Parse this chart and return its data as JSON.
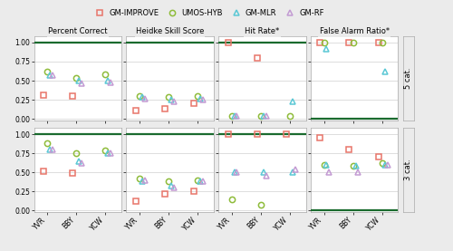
{
  "legend": {
    "labels": [
      "GM-IMPROVE",
      "UMOS-HYB",
      "GM-MLR",
      "GM-RF"
    ],
    "colors": [
      "#e8756a",
      "#8fbc3b",
      "#5bc8d5",
      "#c39bd3"
    ],
    "markers": [
      "s",
      "o",
      "^",
      "^"
    ]
  },
  "col_titles": [
    "Percent Correct",
    "Heidke Skill Score",
    "Hit Rate*",
    "False Alarm Ratio*"
  ],
  "row_labels": [
    "5 cat.",
    "3 cat."
  ],
  "x_labels": [
    "YVR",
    "BBY",
    "YCW"
  ],
  "perfect_score": {
    "Percent Correct": 1.0,
    "Heidke Skill Score": 1.0,
    "Hit Rate*": 1.0,
    "False Alarm Ratio*": 0.0
  },
  "data": {
    "5cat": {
      "Percent Correct": {
        "GM-IMPROVE": [
          0.31,
          0.3,
          null
        ],
        "UMOS-HYB": [
          0.62,
          0.54,
          0.58
        ],
        "GM-MLR": [
          0.57,
          0.5,
          0.5
        ],
        "GM-RF": [
          0.57,
          0.46,
          0.48
        ]
      },
      "Heidke Skill Score": {
        "GM-IMPROVE": [
          0.11,
          0.13,
          0.2
        ],
        "UMOS-HYB": [
          0.3,
          0.29,
          0.3
        ],
        "GM-MLR": [
          0.29,
          0.25,
          0.26
        ],
        "GM-RF": [
          0.26,
          0.23,
          0.25
        ]
      },
      "Hit Rate*": {
        "GM-IMPROVE": [
          1.0,
          0.8,
          null
        ],
        "UMOS-HYB": [
          0.04,
          0.04,
          0.04
        ],
        "GM-MLR": [
          0.04,
          0.04,
          0.23
        ],
        "GM-RF": [
          0.04,
          0.04,
          null
        ]
      },
      "False Alarm Ratio*": {
        "GM-IMPROVE": [
          1.0,
          1.0,
          1.0
        ],
        "UMOS-HYB": [
          1.0,
          1.0,
          1.0
        ],
        "GM-MLR": [
          0.92,
          null,
          0.62
        ],
        "GM-RF": [
          null,
          null,
          null
        ]
      }
    },
    "3cat": {
      "Percent Correct": {
        "GM-IMPROVE": [
          0.52,
          0.49,
          null
        ],
        "UMOS-HYB": [
          0.88,
          0.75,
          0.79
        ],
        "GM-MLR": [
          0.8,
          0.64,
          0.75
        ],
        "GM-RF": [
          0.8,
          0.62,
          0.75
        ]
      },
      "Heidke Skill Score": {
        "GM-IMPROVE": [
          0.12,
          0.22,
          0.25
        ],
        "UMOS-HYB": [
          0.42,
          0.38,
          0.4
        ],
        "GM-MLR": [
          0.38,
          0.32,
          0.38
        ],
        "GM-RF": [
          0.4,
          0.3,
          0.38
        ]
      },
      "Hit Rate*": {
        "GM-IMPROVE": [
          1.0,
          1.0,
          1.0
        ],
        "UMOS-HYB": [
          0.15,
          0.08,
          null
        ],
        "GM-MLR": [
          0.5,
          0.5,
          0.5
        ],
        "GM-RF": [
          0.5,
          0.45,
          0.54
        ]
      },
      "False Alarm Ratio*": {
        "GM-IMPROVE": [
          0.95,
          0.8,
          0.7
        ],
        "UMOS-HYB": [
          0.6,
          0.58,
          0.62
        ],
        "GM-MLR": [
          0.6,
          0.58,
          0.6
        ],
        "GM-RF": [
          0.5,
          0.5,
          0.6
        ]
      }
    }
  },
  "ylim": [
    -0.02,
    1.08
  ],
  "yticks": [
    0.0,
    0.25,
    0.5,
    0.75,
    1.0
  ],
  "bg_panel": "#ebebeb",
  "bg_plot": "#ffffff",
  "green_line_color": "#1a6b2e",
  "marker_size": 4.5,
  "offsets": [
    -0.13,
    0.0,
    0.09,
    0.18
  ]
}
